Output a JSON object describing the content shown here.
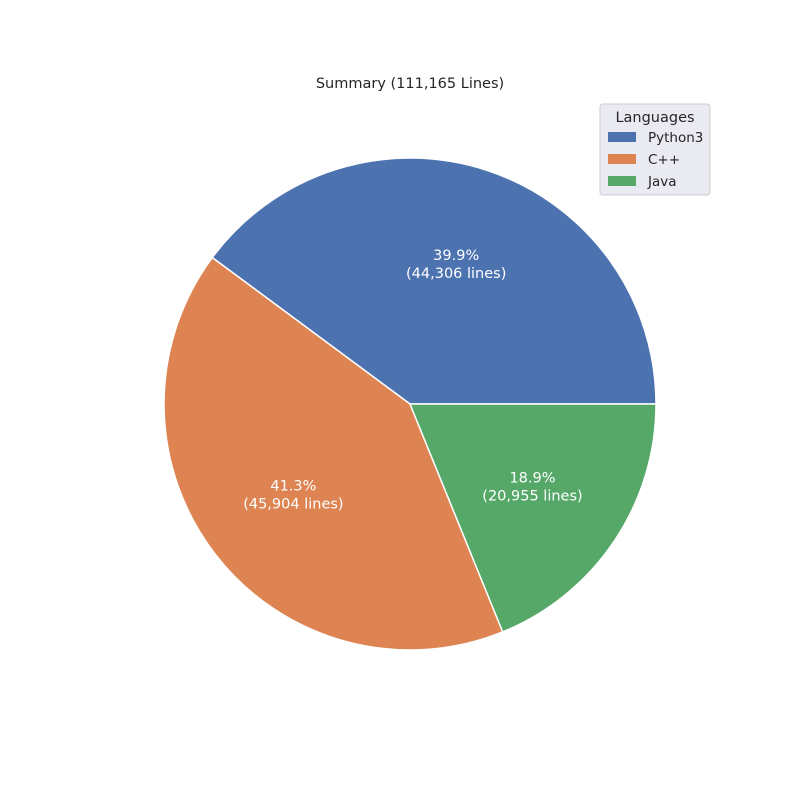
{
  "chart_data": {
    "type": "pie",
    "title": "Summary (111,165 Lines)",
    "start_angle_deg": 0,
    "direction": "counterclockwise",
    "slices": [
      {
        "label": "Python3",
        "value": 44306,
        "percent_text": "39.9%",
        "lines_text": "(44,306 lines)",
        "color": "#4c72b0"
      },
      {
        "label": "C++",
        "value": 45904,
        "percent_text": "41.3%",
        "lines_text": "(45,904 lines)",
        "color": "#dd8452"
      },
      {
        "label": "Java",
        "value": 20955,
        "percent_text": "18.9%",
        "lines_text": "(20,955 lines)",
        "color": "#55a868"
      }
    ],
    "legend": {
      "title": "Languages",
      "placement": "top-right"
    }
  }
}
